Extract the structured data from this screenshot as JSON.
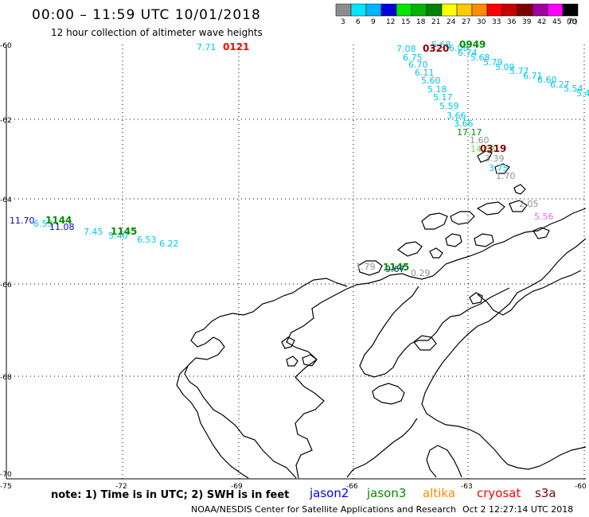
{
  "header": {
    "title": "00:00 – 11:59 UTC 10/01/2018",
    "subtitle": "12 hour collection of altimeter wave heights"
  },
  "legend": {
    "unit": "(ft)",
    "steps": [
      {
        "label": "3",
        "color": "#8c8c8c"
      },
      {
        "label": "6",
        "color": "#00e5ff"
      },
      {
        "label": "9",
        "color": "#00b4ff"
      },
      {
        "label": "12",
        "color": "#0000d8"
      },
      {
        "label": "15",
        "color": "#00e600"
      },
      {
        "label": "18",
        "color": "#00b400"
      },
      {
        "label": "21",
        "color": "#008200"
      },
      {
        "label": "24",
        "color": "#ffff00"
      },
      {
        "label": "27",
        "color": "#ffc800"
      },
      {
        "label": "30",
        "color": "#ff8c00"
      },
      {
        "label": "33",
        "color": "#ff0000"
      },
      {
        "label": "36",
        "color": "#c80000"
      },
      {
        "label": "39",
        "color": "#7d0000"
      },
      {
        "label": "42",
        "color": "#a000a0"
      },
      {
        "label": "45",
        "color": "#ff00ff"
      },
      {
        "label": "70",
        "color": "#000000"
      }
    ]
  },
  "axes": {
    "lat_labels": [
      "-60",
      "-62",
      "-64",
      "-66",
      "-68",
      "-70"
    ],
    "lon_labels": [
      "-75",
      "-72",
      "-69",
      "-66",
      "-63",
      "-60"
    ]
  },
  "footer": {
    "note": "note: 1) Time is in UTC; 2) SWH is in feet",
    "satellites": [
      {
        "name": "jason2",
        "color": "#0000ff"
      },
      {
        "name": "jason3",
        "color": "#008c00"
      },
      {
        "name": "altika",
        "color": "#ff8c00"
      },
      {
        "name": "cryosat",
        "color": "#ff0000"
      },
      {
        "name": "s3a",
        "color": "#800000"
      }
    ],
    "credit": "NOAA/NESDIS Center for Satellite Applications and Research",
    "timestamp": "Oct  2 12:27:14 UTC 2018"
  },
  "colors": {
    "cyan": "#00c8e8",
    "blue": "#0000c8",
    "green": "#008c00",
    "lightgreen": "#66dd44",
    "grey": "#909090",
    "red": "#ff0000",
    "darkred": "#8b0000",
    "pink": "#ee66ee"
  },
  "pass_times": [
    {
      "text": "0121",
      "color": "red"
    },
    {
      "text": "0320",
      "color": "darkred"
    },
    {
      "text": "0949",
      "color": "green"
    },
    {
      "text": "0319",
      "color": "darkred"
    },
    {
      "text": "1144",
      "color": "green"
    },
    {
      "text": "1145",
      "color": "green"
    },
    {
      "text": "1145",
      "color": "green"
    }
  ],
  "wave_heights": [
    {
      "text": "7.71",
      "color": "cyan"
    },
    {
      "text": "7.08",
      "color": "cyan"
    },
    {
      "text": "5.68",
      "color": "cyan"
    },
    {
      "text": "6.08",
      "color": "cyan"
    },
    {
      "text": "6.74",
      "color": "cyan"
    },
    {
      "text": "6.75",
      "color": "cyan"
    },
    {
      "text": "5.68",
      "color": "cyan"
    },
    {
      "text": "6.70",
      "color": "cyan"
    },
    {
      "text": "5.79",
      "color": "cyan"
    },
    {
      "text": "5.09",
      "color": "cyan"
    },
    {
      "text": "6.11",
      "color": "cyan"
    },
    {
      "text": "5.77",
      "color": "cyan"
    },
    {
      "text": "5.60",
      "color": "cyan"
    },
    {
      "text": "6.71",
      "color": "cyan"
    },
    {
      "text": "6.60",
      "color": "cyan"
    },
    {
      "text": "5.18",
      "color": "cyan"
    },
    {
      "text": "6.27",
      "color": "cyan"
    },
    {
      "text": "5.54",
      "color": "cyan"
    },
    {
      "text": "5.17",
      "color": "cyan"
    },
    {
      "text": "5.4",
      "color": "cyan"
    },
    {
      "text": "5.59",
      "color": "cyan"
    },
    {
      "text": "3.66",
      "color": "cyan"
    },
    {
      "text": "3.66",
      "color": "cyan"
    },
    {
      "text": "17.17",
      "color": "green"
    },
    {
      "text": "1.60",
      "color": "grey"
    },
    {
      "text": "14.63",
      "color": "lightgreen"
    },
    {
      "text": "3.39",
      "color": "grey"
    },
    {
      "text": "3.75",
      "color": "cyan"
    },
    {
      "text": "1.70",
      "color": "grey"
    },
    {
      "text": "2.05",
      "color": "grey"
    },
    {
      "text": "5.56",
      "color": "pink"
    },
    {
      "text": "11.70",
      "color": "blue"
    },
    {
      "text": "6.53",
      "color": "cyan"
    },
    {
      "text": "11.08",
      "color": "blue"
    },
    {
      "text": "7.45",
      "color": "cyan"
    },
    {
      "text": "5.40",
      "color": "cyan"
    },
    {
      "text": "6.53",
      "color": "cyan"
    },
    {
      "text": "6.22",
      "color": "cyan"
    },
    {
      "text": "1.79",
      "color": "grey"
    },
    {
      "text": "9.67",
      "color": "blue"
    },
    {
      "text": "0.29",
      "color": "grey"
    }
  ]
}
